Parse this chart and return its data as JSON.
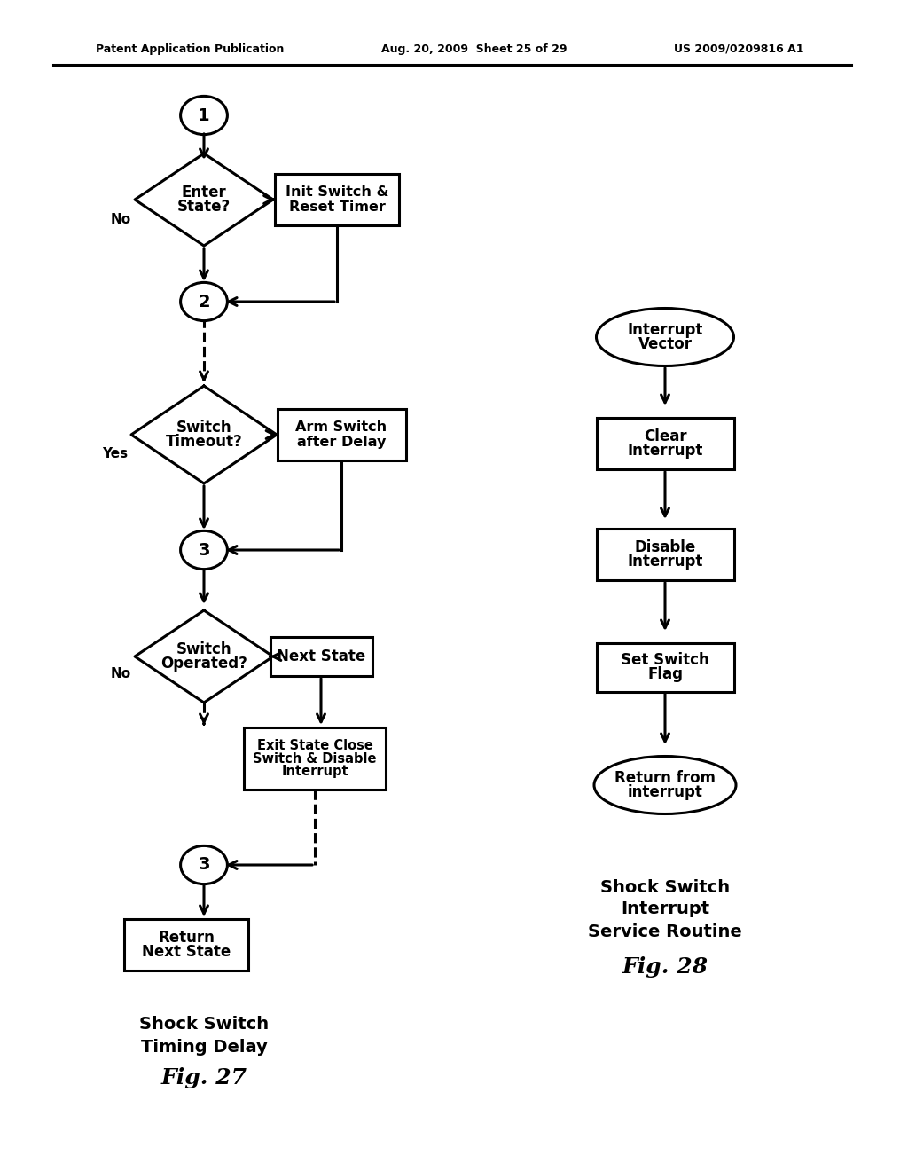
{
  "bg_color": "#ffffff",
  "header_left": "Patent Application Publication",
  "header_mid": "Aug. 20, 2009  Sheet 25 of 29",
  "header_right": "US 2009/0209816 A1",
  "fig27_title_line1": "Shock Switch",
  "fig27_title_line2": "Timing Delay",
  "fig27_label": "Fig. 27",
  "fig28_title_line1": "Shock Switch",
  "fig28_title_line2": "Interrupt",
  "fig28_title_line3": "Service Routine",
  "fig28_label": "Fig. 28"
}
